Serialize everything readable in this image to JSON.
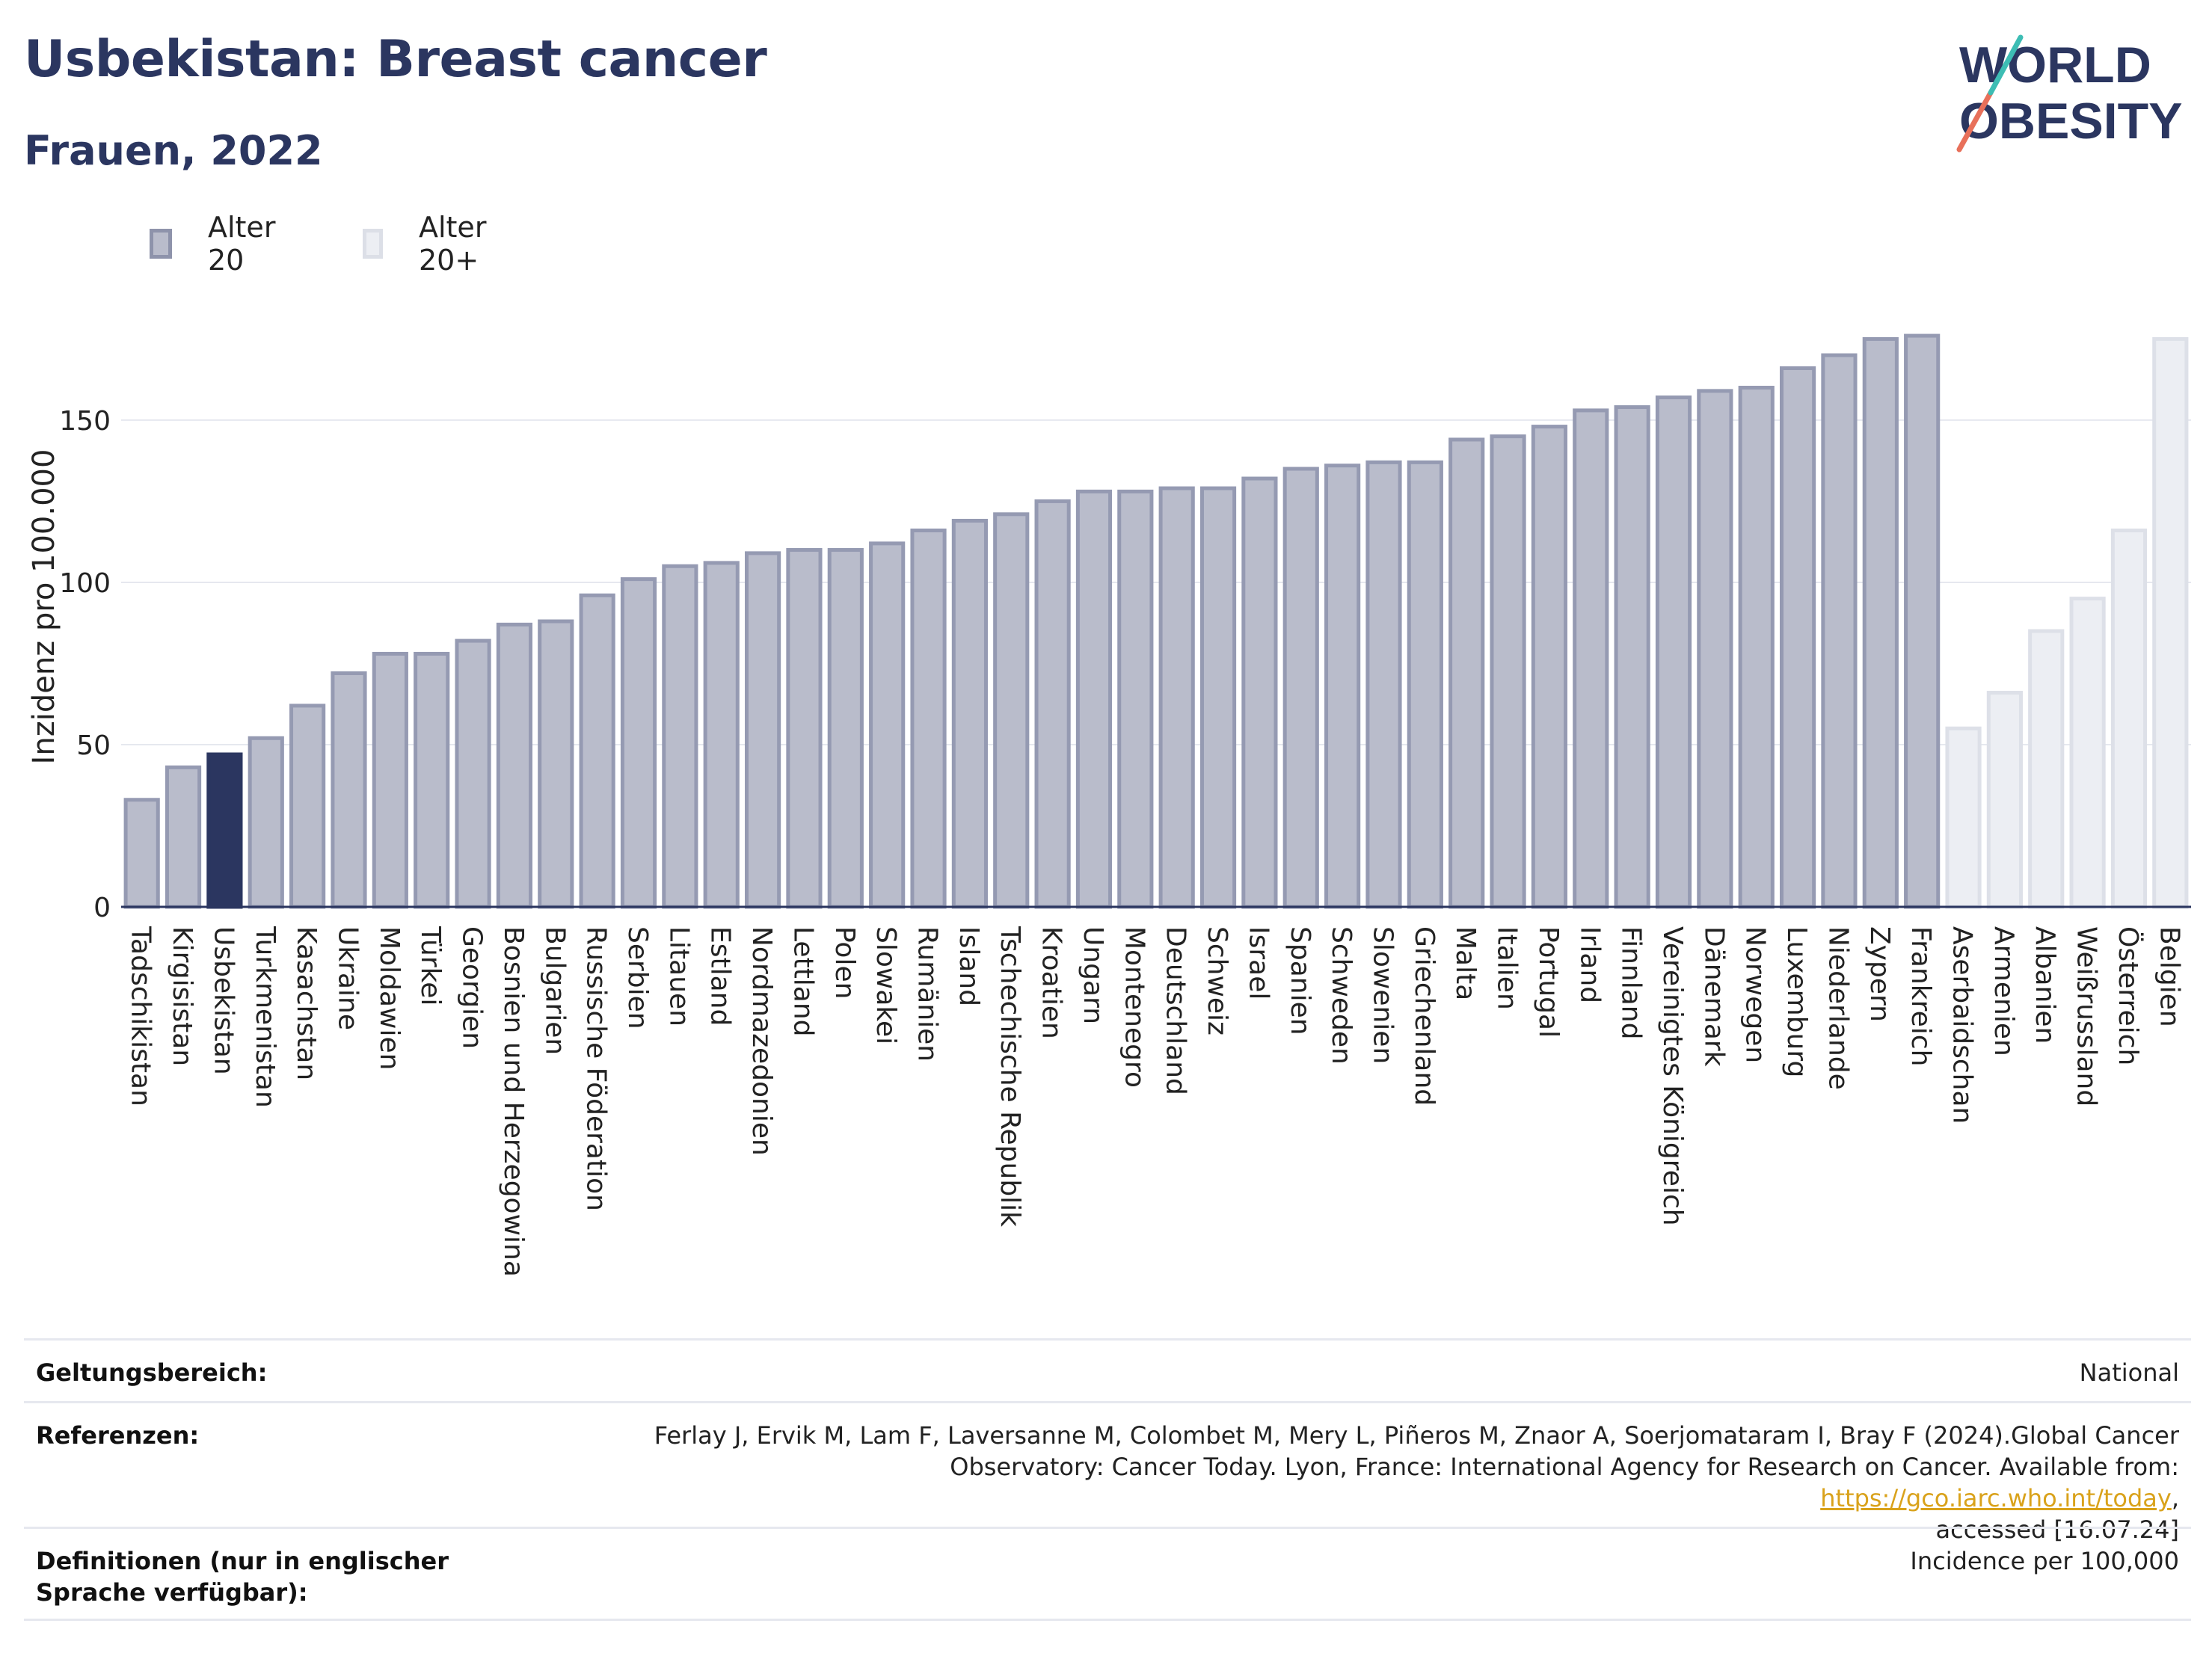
{
  "header": {
    "title": "Usbekistan: Breast cancer",
    "subtitle": "Frauen, 2022"
  },
  "logo": {
    "line1": "WORLD",
    "line2": "OBESITY"
  },
  "legend": [
    {
      "label": "Alter 20",
      "color": "#b9bccb",
      "border": "#8e93ab"
    },
    {
      "label": "Alter 20+",
      "color": "#eceef3",
      "border": "#dcdfe7"
    }
  ],
  "chart_data": {
    "type": "bar",
    "title": "Usbekistan: Breast cancer",
    "subtitle": "Frauen, 2022",
    "ylabel": "Inzidenz pro 100.000",
    "xlabel": "",
    "ylim": [
      0,
      185
    ],
    "yticks": [
      0,
      50,
      100,
      150
    ],
    "grid": true,
    "legend_position": "top-left",
    "highlight": "Usbekistan",
    "highlight_color": "#2b3660",
    "series": [
      {
        "name": "Alter 20",
        "color": "#b9bccb",
        "categories": [
          "Tadschikistan",
          "Kirgisistan",
          "Usbekistan",
          "Turkmenistan",
          "Kasachstan",
          "Ukraine",
          "Moldawien",
          "Türkei",
          "Georgien",
          "Bosnien und Herzegowina",
          "Bulgarien",
          "Russische Föderation",
          "Serbien",
          "Litauen",
          "Estland",
          "Nordmazedonien",
          "Lettland",
          "Polen",
          "Slowakei",
          "Rumänien",
          "Island",
          "Tschechische Republik",
          "Kroatien",
          "Ungarn",
          "Montenegro",
          "Deutschland",
          "Schweiz",
          "Israel",
          "Spanien",
          "Schweden",
          "Slowenien",
          "Griechenland",
          "Malta",
          "Italien",
          "Portugal",
          "Irland",
          "Finnland",
          "Vereinigtes Königreich",
          "Dänemark",
          "Norwegen",
          "Luxemburg",
          "Niederlande",
          "Zypern",
          "Frankreich"
        ],
        "values": [
          33,
          43,
          47,
          52,
          62,
          72,
          78,
          78,
          82,
          87,
          88,
          96,
          101,
          105,
          106,
          109,
          110,
          110,
          112,
          116,
          119,
          121,
          125,
          128,
          128,
          129,
          129,
          132,
          135,
          136,
          137,
          137,
          144,
          145,
          148,
          153,
          154,
          157,
          159,
          160,
          166,
          170,
          175,
          176
        ]
      },
      {
        "name": "Alter 20+",
        "color": "#eceef3",
        "categories": [
          "Aserbaidschan",
          "Armenien",
          "Albanien",
          "Weißrussland",
          "Österreich",
          "Belgien"
        ],
        "values": [
          55,
          66,
          85,
          95,
          116,
          175
        ]
      }
    ]
  },
  "footer": {
    "scope_label": "Geltungsbereich:",
    "scope_value": "National",
    "refs_label": "Referenzen:",
    "refs_text_1": "Ferlay J, Ervik M, Lam F, Laversanne M, Colombet M, Mery L, Piñeros M, Znaor A, Soerjomataram I, Bray F (2024).Global Cancer",
    "refs_text_2": "Observatory: Cancer Today. Lyon, France: International Agency for Research on Cancer. Available from: ",
    "refs_link": "https://gco.iarc.who.int/today",
    "refs_text_3": ",",
    "refs_text_4": "accessed [16.07.24]",
    "defs_label": "Definitionen (nur in englischer Sprache verfügbar):",
    "defs_value": "Incidence per 100,000"
  }
}
